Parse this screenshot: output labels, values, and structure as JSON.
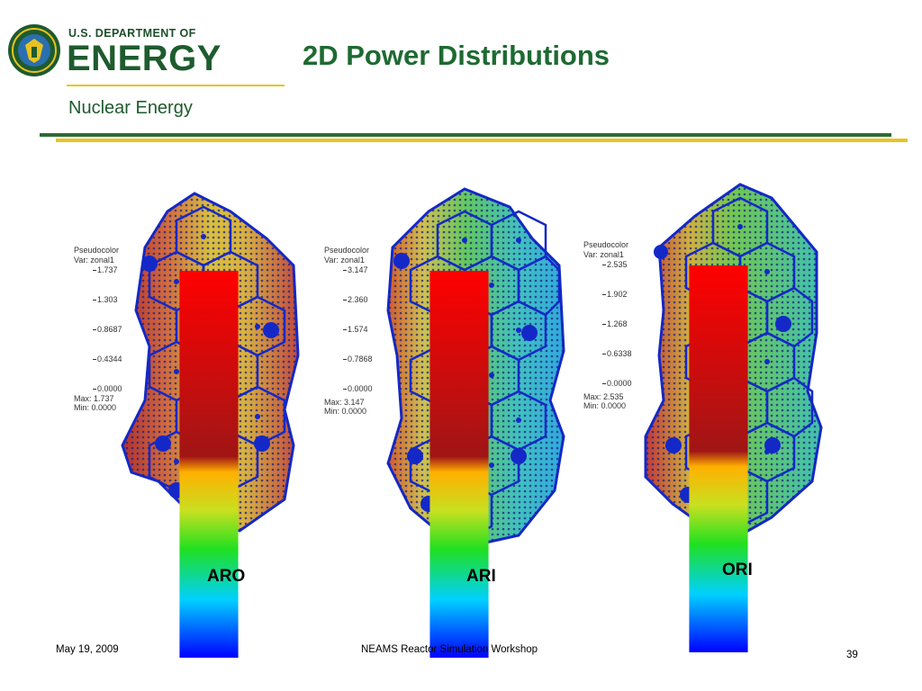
{
  "header": {
    "doe_line1": "U.S. DEPARTMENT OF",
    "doe_line2": "ENERGY",
    "office": "Nuclear Energy",
    "title": "2D Power Distributions"
  },
  "colors": {
    "doe_green": "#1e5b2e",
    "rule_green": "#2e6b35",
    "rule_yellow": "#e8c31f"
  },
  "panels": [
    {
      "id": "aro",
      "label": "ARO",
      "legend": {
        "title": "Pseudocolor",
        "var": "Var: zonal1",
        "ticks": [
          "1.737",
          "1.303",
          "0.8687",
          "0.4344",
          "0.0000"
        ],
        "max": "Max: 1.737",
        "min": "Min: 0.0000"
      }
    },
    {
      "id": "ari",
      "label": "ARI",
      "legend": {
        "title": "Pseudocolor",
        "var": "Var: zonal1",
        "ticks": [
          "3.147",
          "2.360",
          "1.574",
          "0.7868",
          "0.0000"
        ],
        "max": "Max: 3.147",
        "min": "Min: 0.0000"
      }
    },
    {
      "id": "ori",
      "label": "ORI",
      "legend": {
        "title": "Pseudocolor",
        "var": "Var: zonal1",
        "ticks": [
          "2.535",
          "1.902",
          "1.268",
          "0.6338",
          "0.0000"
        ],
        "max": "Max: 2.535",
        "min": "Min: 0.0000"
      }
    }
  ],
  "footer": {
    "date": "May 19, 2009",
    "event": "NEAMS Reactor Simulation Workshop",
    "page": "39"
  }
}
